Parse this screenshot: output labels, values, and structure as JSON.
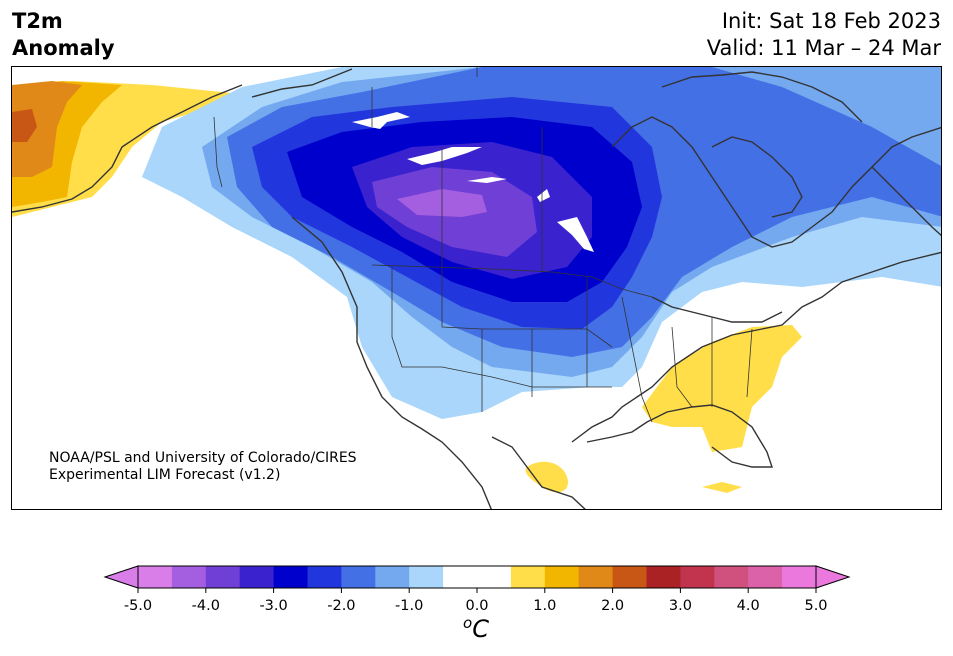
{
  "title": {
    "line1": "T2m",
    "line2": "Anomaly"
  },
  "dates": {
    "init": "Init: Sat 18 Feb 2023",
    "valid": "Valid: 11 Mar – 24 Mar"
  },
  "credit": {
    "line1": "NOAA/PSL and University of Colorado/CIRES",
    "line2": "Experimental LIM Forecast (v1.2)"
  },
  "colorbar": {
    "ticks": [
      "-5.0",
      "-4.0",
      "-3.0",
      "-2.0",
      "-1.0",
      "0.0",
      "1.0",
      "2.0",
      "3.0",
      "4.0",
      "5.0"
    ],
    "unit_base": "C",
    "unit_sup": "o",
    "colors": [
      "#d97ee8",
      "#a45ee0",
      "#6f3fd6",
      "#3a22cf",
      "#0000cc",
      "#2236dd",
      "#4470e6",
      "#74a9f0",
      "#a9d6fa",
      "#ffffff",
      "#ffffff",
      "#ffde4a",
      "#f2b500",
      "#e08818",
      "#c85615",
      "#aa2224",
      "#c2334e",
      "#d0507e",
      "#db62a8",
      "#ea78dd"
    ],
    "under_color": "#d97ee8",
    "over_color": "#ea78dd"
  }
}
